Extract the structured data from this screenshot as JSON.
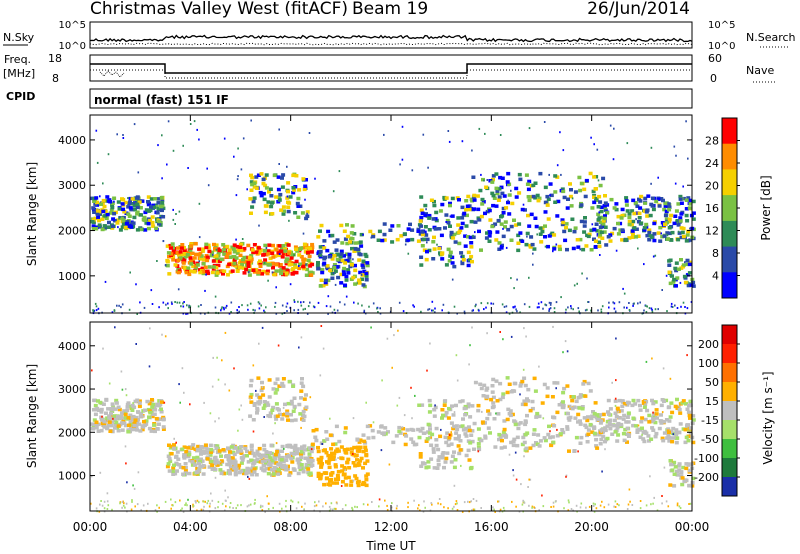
{
  "header": {
    "station": "Christmas Valley West (fitACF)",
    "beam": "Beam 19",
    "date": "26/Jun/2014"
  },
  "status_panels": {
    "nsky_label": "N.Sky",
    "nsky_ticks": [
      "10^5",
      "10^0"
    ],
    "nsearch_label": "N.Search",
    "nsearch_ticks": [
      "10^5",
      "10^0"
    ],
    "freq_label_1": "Freq.",
    "freq_label_2": "[MHz]",
    "freq_ticks": [
      "18",
      "8"
    ],
    "nave_label": "Nave",
    "nave_ticks": [
      "60",
      "0"
    ],
    "cpid_label": "CPID",
    "cpid_value": "normal (fast) 151 IF"
  },
  "chart_data": [
    {
      "type": "heatmap",
      "name": "power",
      "ylabel": "Slant Range [km]",
      "yticks": [
        "4000",
        "3000",
        "2000",
        "1000"
      ],
      "ylim": [
        180,
        4550
      ],
      "colorbar_label": "Power [dB]",
      "colorbar_ticks": [
        "28",
        "24",
        "20",
        "16",
        "12",
        "8",
        "4"
      ],
      "colorbar_colors": [
        "#0000ff",
        "#2a4aa8",
        "#2e8b57",
        "#7ac143",
        "#f5d000",
        "#ff8c00",
        "#ff0000"
      ]
    },
    {
      "type": "heatmap",
      "name": "velocity",
      "ylabel": "Slant Range [km]",
      "yticks": [
        "4000",
        "3000",
        "2000",
        "1000"
      ],
      "ylim": [
        180,
        4550
      ],
      "colorbar_label": "Velocity [m s⁻¹]",
      "colorbar_ticks": [
        "200",
        "100",
        "50",
        "15",
        "-15",
        "-50",
        "-100",
        "-200"
      ],
      "colorbar_colors": [
        "#1a2fa8",
        "#1e7a3c",
        "#3fbf3f",
        "#a6e06a",
        "#bfbfbf",
        "#ffb000",
        "#ff7000",
        "#ff2000",
        "#e00000"
      ]
    }
  ],
  "xaxis": {
    "label": "Time UT",
    "ticks": [
      "00:00",
      "04:00",
      "08:00",
      "12:00",
      "16:00",
      "20:00",
      "00:00"
    ],
    "xlim_hours": [
      0,
      24
    ]
  }
}
